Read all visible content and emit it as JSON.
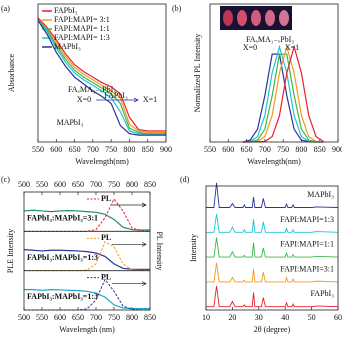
{
  "chart_data": [
    {
      "type": "line",
      "panel_label": "(a)",
      "x_label": "Wavelength(nm)",
      "y_label": "Absorbance",
      "xlim": [
        550,
        900
      ],
      "xticks": [
        550,
        600,
        650,
        700,
        750,
        800,
        850,
        900
      ],
      "ylim": [
        0,
        1
      ],
      "x": [
        550,
        575,
        600,
        625,
        650,
        675,
        700,
        725,
        750,
        775,
        800,
        825,
        850,
        900
      ],
      "series": [
        {
          "name": "FAPbI₃",
          "color": "#e8202a",
          "values": [
            0.9,
            0.83,
            0.74,
            0.64,
            0.56,
            0.51,
            0.47,
            0.43,
            0.4,
            0.35,
            0.18,
            0.09,
            0.08,
            0.08
          ]
        },
        {
          "name": "FAPI:MAPI= 3:1",
          "color": "#f39a1e",
          "values": [
            0.89,
            0.82,
            0.72,
            0.62,
            0.54,
            0.49,
            0.45,
            0.41,
            0.37,
            0.32,
            0.13,
            0.08,
            0.07,
            0.07
          ]
        },
        {
          "name": "FAPI:MAPI= 1:1",
          "color": "#3cb84a",
          "values": [
            0.89,
            0.81,
            0.7,
            0.6,
            0.52,
            0.47,
            0.43,
            0.39,
            0.35,
            0.28,
            0.1,
            0.07,
            0.06,
            0.06
          ]
        },
        {
          "name": "FAPI:MAPI= 1:3",
          "color": "#22c3d6",
          "values": [
            0.88,
            0.8,
            0.68,
            0.58,
            0.5,
            0.45,
            0.41,
            0.37,
            0.32,
            0.22,
            0.08,
            0.06,
            0.06,
            0.06
          ]
        },
        {
          "name": "MAPbI₃",
          "color": "#2b3497",
          "values": [
            0.88,
            0.78,
            0.65,
            0.55,
            0.47,
            0.42,
            0.37,
            0.33,
            0.28,
            0.12,
            0.06,
            0.05,
            0.05,
            0.05
          ]
        }
      ],
      "annotations": [
        "FAₓMA₁₋ₓPbI₃",
        "X=0",
        "X=1",
        "MAPbI₃",
        "FAPbI₃"
      ]
    },
    {
      "type": "line",
      "panel_label": "(b)",
      "x_label": "Wavelength(nm)",
      "y_label": "Normalized PL Intensity",
      "xlim": [
        550,
        900
      ],
      "xticks": [
        550,
        600,
        650,
        700,
        750,
        800,
        850,
        900
      ],
      "ylim": [
        0,
        1.45
      ],
      "x": [
        640,
        660,
        680,
        700,
        720,
        740,
        760,
        780,
        800,
        820,
        840,
        860
      ],
      "series": [
        {
          "color": "#2b3497",
          "values": [
            0.002,
            0.02,
            0.135,
            0.487,
            0.923,
            0.923,
            0.487,
            0.135,
            0.02,
            0.002,
            0,
            0
          ]
        },
        {
          "color": "#22c3d6",
          "values": [
            0.001,
            0.006,
            0.056,
            0.278,
            0.726,
            1,
            0.726,
            0.278,
            0.056,
            0.006,
            0.001,
            0
          ]
        },
        {
          "color": "#3cb84a",
          "values": [
            0,
            0.002,
            0.02,
            0.135,
            0.487,
            0.923,
            0.923,
            0.487,
            0.135,
            0.02,
            0.002,
            0
          ]
        },
        {
          "color": "#f39a1e",
          "values": [
            0,
            0.001,
            0.006,
            0.056,
            0.278,
            0.726,
            1,
            0.726,
            0.278,
            0.056,
            0.006,
            0.001
          ]
        },
        {
          "color": "#e8202a",
          "values": [
            0,
            0,
            0.001,
            0.006,
            0.056,
            0.278,
            0.726,
            1,
            0.726,
            0.278,
            0.056,
            0.006
          ]
        }
      ],
      "annotations": [
        "FAₓMA₁₋ₓPbI₃",
        "X=0",
        "X=1"
      ]
    },
    {
      "type": "line",
      "panel_label": "(c)",
      "x_label": "Wavelength (nm)",
      "y_label": "PLE Intensity",
      "y2_label": "PL Intensity",
      "xlim": [
        500,
        850
      ],
      "xticks": [
        500,
        550,
        600,
        650,
        700,
        750,
        800,
        850
      ],
      "ylim": [
        0,
        1.1
      ],
      "x": [
        500,
        525,
        550,
        575,
        600,
        625,
        650,
        675,
        700,
        725,
        750,
        775,
        800,
        825,
        850
      ],
      "panels": [
        {
          "label": "FAPbI₃:MAPbI₃=3:1",
          "legend": "PL",
          "color": "#e8202a",
          "ple_color": "#1c8f6a",
          "ple": [
            0.6,
            0.62,
            0.6,
            0.58,
            0.6,
            0.61,
            0.6,
            0.58,
            0.56,
            0.5,
            0.35,
            0.12,
            0.05,
            0.04,
            0.04
          ],
          "pl": [
            0,
            0,
            0,
            0,
            0,
            0,
            0,
            0,
            0.05,
            0.4,
            0.95,
            0.6,
            0.1,
            0.01,
            0
          ]
        },
        {
          "label": "FAPbI₃:MAPbI₃=1:3",
          "legend": "PL",
          "color": "#f39a1e",
          "ple_color": "#2b3497",
          "ple": [
            0.62,
            0.6,
            0.58,
            0.6,
            0.6,
            0.59,
            0.58,
            0.56,
            0.52,
            0.42,
            0.2,
            0.07,
            0.04,
            0.04,
            0.04
          ],
          "pl": [
            0,
            0,
            0,
            0,
            0,
            0,
            0,
            0.02,
            0.2,
            0.85,
            0.7,
            0.2,
            0.03,
            0,
            0
          ]
        },
        {
          "label": "FAPbI₃:MAPbI₃=1:3",
          "legend": "PL",
          "color": "#2b3497",
          "ple_color": "#1aa3c9",
          "ple": [
            0.6,
            0.6,
            0.58,
            0.6,
            0.59,
            0.58,
            0.57,
            0.55,
            0.5,
            0.38,
            0.15,
            0.06,
            0.04,
            0.04,
            0.04
          ],
          "pl": [
            0,
            0,
            0,
            0,
            0,
            0,
            0,
            0.03,
            0.3,
            0.9,
            0.55,
            0.12,
            0.02,
            0,
            0
          ]
        }
      ]
    },
    {
      "type": "line",
      "panel_label": "(d)",
      "x_label": "2θ (degree)",
      "y_label": "Intensity",
      "xlim": [
        10,
        60
      ],
      "xticks": [
        10,
        20,
        30,
        40,
        50,
        60
      ],
      "ylim": [
        0,
        1
      ],
      "x": [
        10,
        13,
        14,
        15,
        19,
        20,
        21,
        24,
        24.5,
        25,
        27.5,
        28,
        28.5,
        31,
        31.7,
        32.5,
        35,
        40,
        40.5,
        41,
        42.5,
        43,
        43.5,
        50,
        52,
        60
      ],
      "series": [
        {
          "name": "MAPbI₃",
          "color": "#2b3497",
          "values": [
            0.05,
            0.05,
            1.0,
            0.05,
            0.05,
            0.2,
            0.05,
            0.05,
            0.15,
            0.05,
            0.05,
            0.45,
            0.05,
            0.05,
            0.4,
            0.05,
            0.05,
            0.05,
            0.18,
            0.05,
            0.05,
            0.15,
            0.05,
            0.05,
            0.07,
            0.05
          ]
        },
        {
          "name": "FAPI:MAPI=1:3",
          "color": "#22c3d6",
          "values": [
            0.05,
            0.05,
            0.75,
            0.05,
            0.05,
            0.25,
            0.05,
            0.05,
            0.15,
            0.05,
            0.05,
            0.55,
            0.05,
            0.05,
            0.45,
            0.05,
            0.05,
            0.05,
            0.2,
            0.05,
            0.05,
            0.15,
            0.05,
            0.05,
            0.08,
            0.05
          ]
        },
        {
          "name": "FAPI:MAPI=1:1",
          "color": "#3cb84a",
          "values": [
            0.05,
            0.05,
            0.8,
            0.05,
            0.05,
            0.25,
            0.05,
            0.05,
            0.12,
            0.05,
            0.05,
            0.6,
            0.05,
            0.05,
            0.4,
            0.05,
            0.05,
            0.05,
            0.2,
            0.05,
            0.05,
            0.14,
            0.05,
            0.05,
            0.08,
            0.05
          ]
        },
        {
          "name": "FAPI:MAPI=3:1",
          "color": "#f39a1e",
          "values": [
            0.05,
            0.05,
            0.78,
            0.05,
            0.05,
            0.22,
            0.05,
            0.05,
            0.12,
            0.05,
            0.05,
            0.55,
            0.05,
            0.05,
            0.42,
            0.05,
            0.05,
            0.05,
            0.22,
            0.05,
            0.05,
            0.16,
            0.05,
            0.05,
            0.08,
            0.05
          ]
        },
        {
          "name": "FAPbI₃",
          "color": "#e8202a",
          "values": [
            0.05,
            0.05,
            0.85,
            0.05,
            0.05,
            0.25,
            0.05,
            0.05,
            0.12,
            0.05,
            0.05,
            0.6,
            0.05,
            0.05,
            0.4,
            0.05,
            0.05,
            0.05,
            0.2,
            0.05,
            0.05,
            0.15,
            0.05,
            0.05,
            0.08,
            0.05
          ]
        }
      ]
    }
  ]
}
